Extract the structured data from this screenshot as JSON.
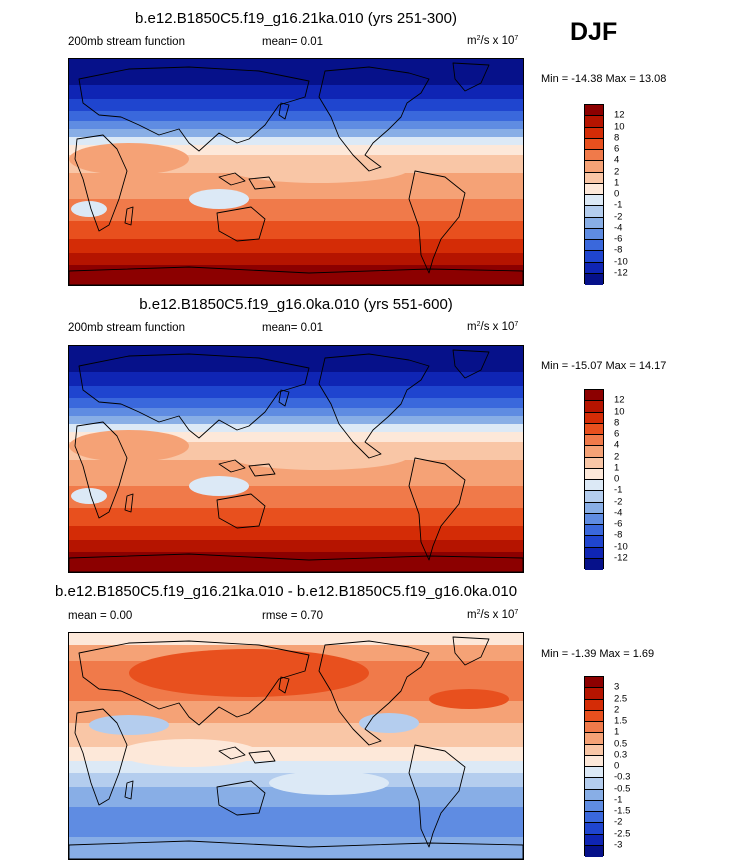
{
  "season": "DJF",
  "units_base": "m",
  "units_exp": "2",
  "units_mid": "/s x 10",
  "units_pow": "7",
  "panel1": {
    "title": "b.e12.B1850C5.f19_g16.21ka.010 (yrs 251-300)",
    "left": "200mb stream function",
    "center": "mean=  0.01",
    "minmax": "Min = -14.38 Max =  13.08"
  },
  "panel2": {
    "title": "b.e12.B1850C5.f19_g16.0ka.010 (yrs 551-600)",
    "left": "200mb stream function",
    "center": "mean=  0.01",
    "minmax": "Min = -15.07 Max =  14.17"
  },
  "panel3": {
    "title": "b.e12.B1850C5.f19_g16.21ka.010 - b.e12.B1850C5.f19_g16.0ka.010",
    "left": "mean =   0.00",
    "center": "rmse =   0.70",
    "minmax": "Min =  -1.39 Max =   1.69"
  },
  "chart_data": [
    {
      "type": "heatmap",
      "title": "b.e12.B1850C5.f19_g16.21ka.010 (yrs 251-300)",
      "variable": "200mb stream function",
      "units": "m^2/s x 10^7",
      "mean": 0.01,
      "min": -14.38,
      "max": 13.08,
      "levels": [
        12,
        10,
        8,
        6,
        4,
        2,
        1,
        0,
        -1,
        -2,
        -4,
        -6,
        -8,
        -10,
        -12
      ],
      "level_labels": [
        "12",
        "10",
        "8",
        "6",
        "4",
        "2",
        "1",
        "0",
        "-1",
        "-2",
        "-4",
        "-6",
        "-8",
        "-10",
        "-12"
      ],
      "colors": [
        "#8c0000",
        "#b51400",
        "#d42c06",
        "#e8501e",
        "#f07a4a",
        "#f5a276",
        "#f9c6a6",
        "#fde8d9",
        "#dce9f6",
        "#b4cdee",
        "#88aee6",
        "#5f8ce2",
        "#3a68dc",
        "#1f45cf",
        "#0f25b4",
        "#06118a"
      ],
      "pattern": "zonal bands: strongly negative at high northern latitudes, positive through tropics and southern latitudes"
    },
    {
      "type": "heatmap",
      "title": "b.e12.B1850C5.f19_g16.0ka.010 (yrs 551-600)",
      "variable": "200mb stream function",
      "units": "m^2/s x 10^7",
      "mean": 0.01,
      "min": -15.07,
      "max": 14.17,
      "levels": [
        12,
        10,
        8,
        6,
        4,
        2,
        1,
        0,
        -1,
        -2,
        -4,
        -6,
        -8,
        -10,
        -12
      ],
      "level_labels": [
        "12",
        "10",
        "8",
        "6",
        "4",
        "2",
        "1",
        "0",
        "-1",
        "-2",
        "-4",
        "-6",
        "-8",
        "-10",
        "-12"
      ],
      "colors": [
        "#8c0000",
        "#b51400",
        "#d42c06",
        "#e8501e",
        "#f07a4a",
        "#f5a276",
        "#f9c6a6",
        "#fde8d9",
        "#dce9f6",
        "#b4cdee",
        "#88aee6",
        "#5f8ce2",
        "#3a68dc",
        "#1f45cf",
        "#0f25b4",
        "#06118a"
      ],
      "pattern": "zonal bands: strongly negative at high northern latitudes, positive through tropics and southern latitudes"
    },
    {
      "type": "heatmap",
      "title": "b.e12.B1850C5.f19_g16.21ka.010 - b.e12.B1850C5.f19_g16.0ka.010",
      "variable": "200mb stream function difference",
      "units": "m^2/s x 10^7",
      "mean": 0.0,
      "rmse": 0.7,
      "min": -1.39,
      "max": 1.69,
      "levels": [
        3,
        2.5,
        2,
        1.5,
        1,
        0.5,
        0.3,
        0,
        -0.3,
        -0.5,
        -1,
        -1.5,
        -2,
        -2.5,
        -3
      ],
      "level_labels": [
        "3",
        "2.5",
        "2",
        "1.5",
        "1",
        "0.5",
        "0.3",
        "0",
        "-0.3",
        "-0.5",
        "-1",
        "-1.5",
        "-2",
        "-2.5",
        "-3"
      ],
      "colors": [
        "#8c0000",
        "#b51400",
        "#d42c06",
        "#e8501e",
        "#f07a4a",
        "#f5a276",
        "#f9c6a6",
        "#fde8d9",
        "#dce9f6",
        "#b4cdee",
        "#88aee6",
        "#5f8ce2",
        "#3a68dc",
        "#1f45cf",
        "#0f25b4",
        "#06118a"
      ],
      "pattern": "positive anomalies over northern mid-high latitudes, negative anomalies over southern mid-latitudes"
    }
  ]
}
